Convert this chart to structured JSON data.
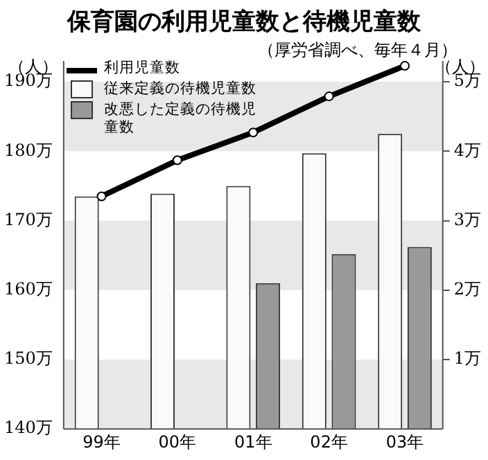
{
  "chart_data": {
    "type": "bar",
    "title": "保育園の利用児童数と待機児童数",
    "subtitle": "（厚労省調べ、毎年４月）",
    "ylabel": "（人）",
    "y2label": "（人）",
    "categories": [
      "99年",
      "00年",
      "01年",
      "02年",
      "03年"
    ],
    "series": [
      {
        "name": "利用児童数",
        "type": "line",
        "color": "#000000",
        "values": [
          173.5,
          178.7,
          182.7,
          187.9,
          192.3
        ]
      },
      {
        "name": "従来定義の待機児童数",
        "axis": "y2",
        "color": "#fafafa",
        "values": [
          3.35,
          3.39,
          3.5,
          3.97,
          4.25
        ]
      },
      {
        "name": "改悪した定義の待機児童数",
        "axis": "y2",
        "color": "#999999",
        "values": [
          null,
          null,
          2.1,
          2.52,
          2.62
        ]
      }
    ],
    "ylim": [
      140,
      193
    ],
    "yticks": [
      {
        "value": 140,
        "label": "140万"
      },
      {
        "value": 150,
        "label": "150万"
      },
      {
        "value": 160,
        "label": "160万"
      },
      {
        "value": 170,
        "label": "170万"
      },
      {
        "value": 180,
        "label": "180万"
      },
      {
        "value": 190,
        "label": "190万"
      }
    ],
    "y2lim": [
      0,
      5.3
    ],
    "y2ticks": [
      {
        "value": 1,
        "label": "1万"
      },
      {
        "value": 2,
        "label": "2万"
      },
      {
        "value": 3,
        "label": "3万"
      },
      {
        "value": 4,
        "label": "4万"
      },
      {
        "value": 5,
        "label": "5万"
      }
    ],
    "bands": [
      {
        "axis": "y",
        "from": 180,
        "to": 190,
        "color": "#e8e8e8"
      },
      {
        "axis": "y",
        "from": 160,
        "to": 170,
        "color": "#e8e8e8"
      },
      {
        "axis": "y",
        "from": 140,
        "to": 150,
        "color": "#e8e8e8"
      }
    ],
    "legend": "top left",
    "marker": "circle",
    "grid": false
  }
}
